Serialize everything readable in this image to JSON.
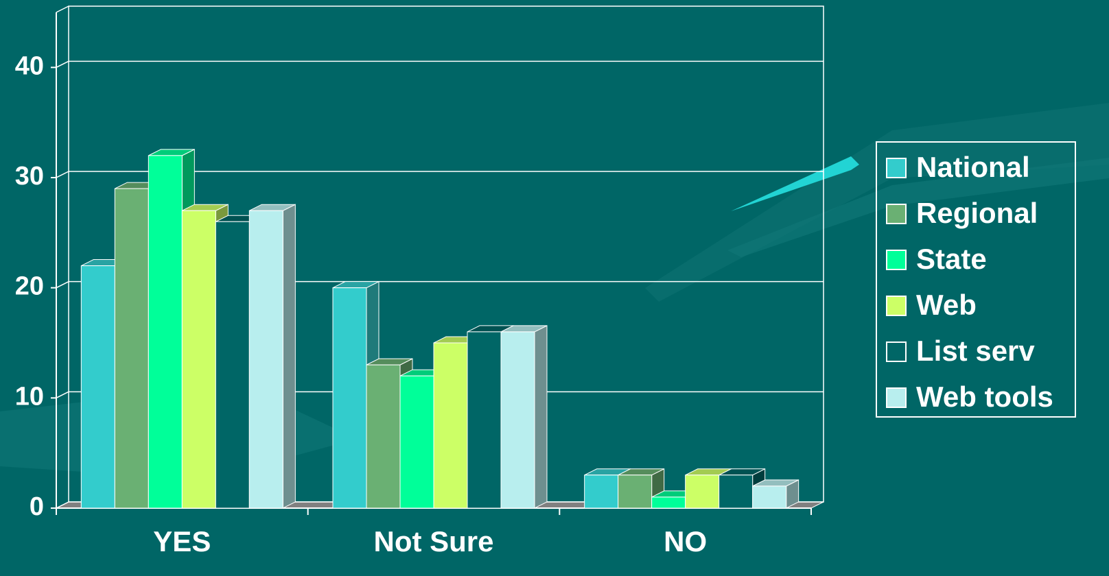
{
  "chart_data": {
    "type": "bar3d",
    "categories": [
      "YES",
      "Not Sure",
      "NO"
    ],
    "series": [
      {
        "name": "National",
        "color": "#33cccc",
        "values": [
          22,
          20,
          3
        ]
      },
      {
        "name": "Regional",
        "color": "#6ab073",
        "values": [
          29,
          13,
          3
        ]
      },
      {
        "name": "State",
        "color": "#00ff99",
        "values": [
          32,
          12,
          1
        ]
      },
      {
        "name": "Web",
        "color": "#ccff66",
        "values": [
          27,
          15,
          3
        ]
      },
      {
        "name": "List serv",
        "color": "#006666",
        "values": [
          26,
          16,
          3
        ]
      },
      {
        "name": "Web tools",
        "color": "#b8eeee",
        "values": [
          27,
          16,
          2
        ]
      }
    ],
    "ylim": [
      0,
      45
    ],
    "yticks": [
      0,
      10,
      20,
      30,
      40
    ],
    "grid": true,
    "legend": "right"
  }
}
